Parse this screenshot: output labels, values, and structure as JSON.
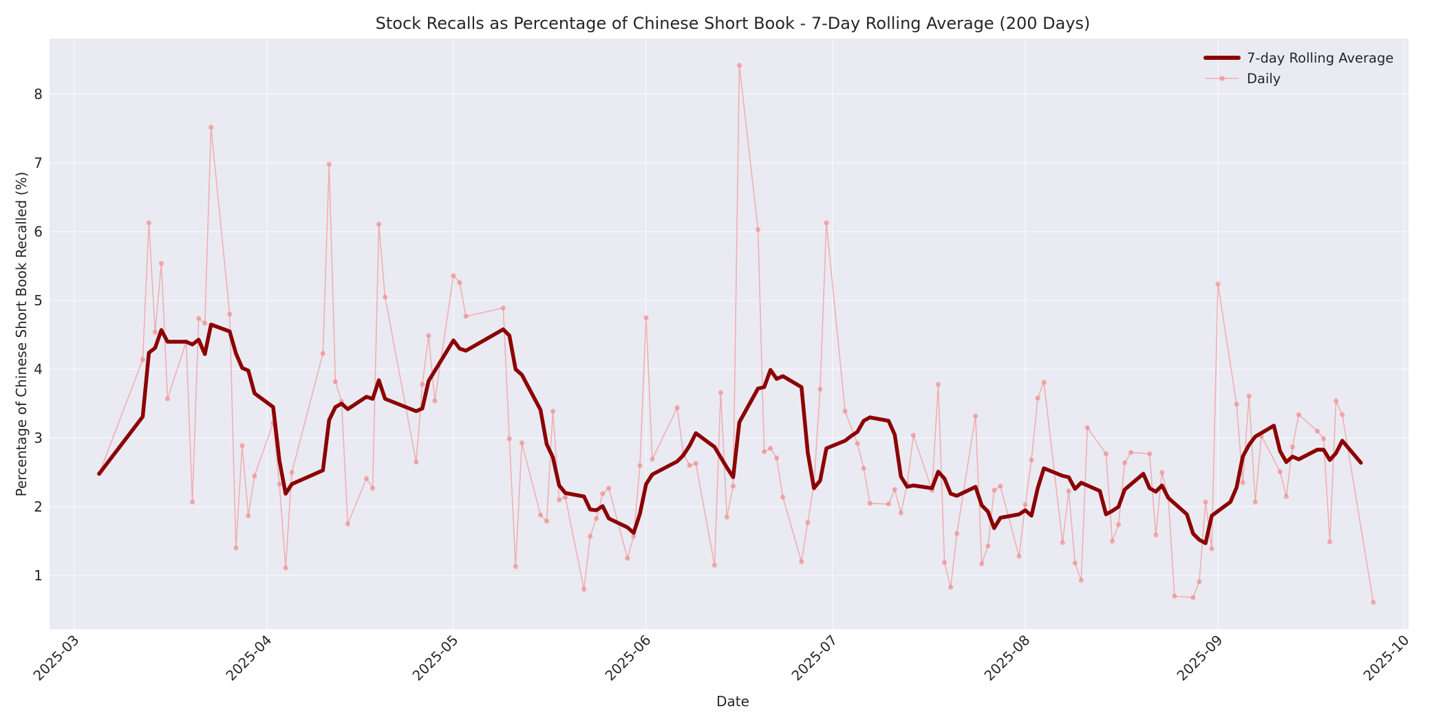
{
  "chart_data": {
    "type": "line",
    "title": "Stock Recalls as Percentage of Chinese Short Book - 7-Day Rolling Average (200 Days)",
    "xlabel": "Date",
    "ylabel": "Percentage of Chinese Short Book Recalled (%)",
    "x_tick_labels": [
      "2025-03",
      "2025-04",
      "2025-05",
      "2025-06",
      "2025-07",
      "2025-08",
      "2025-09",
      "2025-10"
    ],
    "y_tick_labels": [
      "1",
      "2",
      "3",
      "4",
      "5",
      "6",
      "7",
      "8"
    ],
    "xlim": [
      "2025-02-27",
      "2025-10-01"
    ],
    "ylim": [
      0.22,
      8.82
    ],
    "grid": true,
    "legend_position": "upper right",
    "colors": {
      "rolling": "#8b0000",
      "daily": "#f08080",
      "plot_bg": "#eaeaf2",
      "grid": "#ffffff"
    },
    "series": [
      {
        "name": "7-day Rolling Average",
        "style": "thick-line",
        "points": [
          [
            "2025-03-05",
            2.48
          ],
          [
            "2025-03-12",
            3.31
          ],
          [
            "2025-03-13",
            4.24
          ],
          [
            "2025-03-14",
            4.31
          ],
          [
            "2025-03-15",
            4.57
          ],
          [
            "2025-03-16",
            4.4
          ],
          [
            "2025-03-19",
            4.4
          ],
          [
            "2025-03-20",
            4.36
          ],
          [
            "2025-03-21",
            4.43
          ],
          [
            "2025-03-22",
            4.22
          ],
          [
            "2025-03-23",
            4.65
          ],
          [
            "2025-03-26",
            4.55
          ],
          [
            "2025-03-27",
            4.23
          ],
          [
            "2025-03-28",
            4.02
          ],
          [
            "2025-03-29",
            3.98
          ],
          [
            "2025-03-30",
            3.65
          ],
          [
            "2025-04-02",
            3.45
          ],
          [
            "2025-04-03",
            2.67
          ],
          [
            "2025-04-04",
            2.19
          ],
          [
            "2025-04-05",
            2.33
          ],
          [
            "2025-04-10",
            2.53
          ],
          [
            "2025-04-11",
            3.26
          ],
          [
            "2025-04-12",
            3.45
          ],
          [
            "2025-04-13",
            3.5
          ],
          [
            "2025-04-14",
            3.42
          ],
          [
            "2025-04-17",
            3.6
          ],
          [
            "2025-04-18",
            3.57
          ],
          [
            "2025-04-19",
            3.84
          ],
          [
            "2025-04-20",
            3.57
          ],
          [
            "2025-04-25",
            3.39
          ],
          [
            "2025-04-26",
            3.43
          ],
          [
            "2025-04-27",
            3.83
          ],
          [
            "2025-05-01",
            4.42
          ],
          [
            "2025-05-02",
            4.3
          ],
          [
            "2025-05-03",
            4.27
          ],
          [
            "2025-05-09",
            4.58
          ],
          [
            "2025-05-10",
            4.49
          ],
          [
            "2025-05-11",
            4.0
          ],
          [
            "2025-05-12",
            3.92
          ],
          [
            "2025-05-15",
            3.41
          ],
          [
            "2025-05-16",
            2.91
          ],
          [
            "2025-05-17",
            2.72
          ],
          [
            "2025-05-18",
            2.31
          ],
          [
            "2025-05-19",
            2.2
          ],
          [
            "2025-05-22",
            2.15
          ],
          [
            "2025-05-23",
            1.96
          ],
          [
            "2025-05-24",
            1.95
          ],
          [
            "2025-05-25",
            2.01
          ],
          [
            "2025-05-26",
            1.83
          ],
          [
            "2025-05-29",
            1.7
          ],
          [
            "2025-05-30",
            1.62
          ],
          [
            "2025-05-31",
            1.9
          ],
          [
            "2025-06-01",
            2.33
          ],
          [
            "2025-06-02",
            2.47
          ],
          [
            "2025-06-06",
            2.66
          ],
          [
            "2025-06-07",
            2.75
          ],
          [
            "2025-06-08",
            2.89
          ],
          [
            "2025-06-09",
            3.07
          ],
          [
            "2025-06-12",
            2.87
          ],
          [
            "2025-06-13",
            2.72
          ],
          [
            "2025-06-14",
            2.57
          ],
          [
            "2025-06-15",
            2.43
          ],
          [
            "2025-06-16",
            3.23
          ],
          [
            "2025-06-19",
            3.72
          ],
          [
            "2025-06-20",
            3.74
          ],
          [
            "2025-06-21",
            3.99
          ],
          [
            "2025-06-22",
            3.86
          ],
          [
            "2025-06-23",
            3.9
          ],
          [
            "2025-06-26",
            3.74
          ],
          [
            "2025-06-27",
            2.79
          ],
          [
            "2025-06-28",
            2.27
          ],
          [
            "2025-06-29",
            2.38
          ],
          [
            "2025-06-30",
            2.85
          ],
          [
            "2025-07-03",
            2.96
          ],
          [
            "2025-07-04",
            3.03
          ],
          [
            "2025-07-05",
            3.09
          ],
          [
            "2025-07-06",
            3.25
          ],
          [
            "2025-07-07",
            3.3
          ],
          [
            "2025-07-10",
            3.25
          ],
          [
            "2025-07-11",
            3.05
          ],
          [
            "2025-07-12",
            2.44
          ],
          [
            "2025-07-13",
            2.29
          ],
          [
            "2025-07-14",
            2.31
          ],
          [
            "2025-07-17",
            2.27
          ],
          [
            "2025-07-18",
            2.51
          ],
          [
            "2025-07-19",
            2.41
          ],
          [
            "2025-07-20",
            2.19
          ],
          [
            "2025-07-21",
            2.16
          ],
          [
            "2025-07-24",
            2.29
          ],
          [
            "2025-07-25",
            2.02
          ],
          [
            "2025-07-26",
            1.93
          ],
          [
            "2025-07-27",
            1.69
          ],
          [
            "2025-07-28",
            1.84
          ],
          [
            "2025-07-31",
            1.89
          ],
          [
            "2025-08-01",
            1.95
          ],
          [
            "2025-08-02",
            1.87
          ],
          [
            "2025-08-03",
            2.27
          ],
          [
            "2025-08-04",
            2.56
          ],
          [
            "2025-08-07",
            2.45
          ],
          [
            "2025-08-08",
            2.43
          ],
          [
            "2025-08-09",
            2.26
          ],
          [
            "2025-08-10",
            2.35
          ],
          [
            "2025-08-13",
            2.23
          ],
          [
            "2025-08-14",
            1.89
          ],
          [
            "2025-08-15",
            1.94
          ],
          [
            "2025-08-16",
            2.0
          ],
          [
            "2025-08-17",
            2.25
          ],
          [
            "2025-08-20",
            2.48
          ],
          [
            "2025-08-21",
            2.27
          ],
          [
            "2025-08-22",
            2.22
          ],
          [
            "2025-08-23",
            2.31
          ],
          [
            "2025-08-24",
            2.13
          ],
          [
            "2025-08-27",
            1.89
          ],
          [
            "2025-08-28",
            1.61
          ],
          [
            "2025-08-29",
            1.52
          ],
          [
            "2025-08-30",
            1.47
          ],
          [
            "2025-08-31",
            1.87
          ],
          [
            "2025-09-03",
            2.07
          ],
          [
            "2025-09-04",
            2.28
          ],
          [
            "2025-09-05",
            2.73
          ],
          [
            "2025-09-06",
            2.9
          ],
          [
            "2025-09-07",
            3.02
          ],
          [
            "2025-09-10",
            3.18
          ],
          [
            "2025-09-11",
            2.81
          ],
          [
            "2025-09-12",
            2.65
          ],
          [
            "2025-09-13",
            2.73
          ],
          [
            "2025-09-14",
            2.69
          ],
          [
            "2025-09-17",
            2.83
          ],
          [
            "2025-09-18",
            2.83
          ],
          [
            "2025-09-19",
            2.68
          ],
          [
            "2025-09-20",
            2.78
          ],
          [
            "2025-09-21",
            2.96
          ],
          [
            "2025-09-24",
            2.64
          ]
        ]
      },
      {
        "name": "Daily",
        "style": "thin-line-with-markers",
        "points": [
          [
            "2025-03-05",
            2.48
          ],
          [
            "2025-03-12",
            4.14
          ],
          [
            "2025-03-13",
            6.13
          ],
          [
            "2025-03-14",
            4.54
          ],
          [
            "2025-03-15",
            5.54
          ],
          [
            "2025-03-16",
            3.57
          ],
          [
            "2025-03-19",
            4.4
          ],
          [
            "2025-03-20",
            2.07
          ],
          [
            "2025-03-21",
            4.74
          ],
          [
            "2025-03-22",
            4.67
          ],
          [
            "2025-03-23",
            7.52
          ],
          [
            "2025-03-26",
            4.8
          ],
          [
            "2025-03-27",
            1.4
          ],
          [
            "2025-03-28",
            2.89
          ],
          [
            "2025-03-29",
            1.87
          ],
          [
            "2025-03-30",
            2.45
          ],
          [
            "2025-04-02",
            3.22
          ],
          [
            "2025-04-03",
            2.33
          ],
          [
            "2025-04-04",
            1.11
          ],
          [
            "2025-04-05",
            2.5
          ],
          [
            "2025-04-10",
            4.23
          ],
          [
            "2025-04-11",
            6.98
          ],
          [
            "2025-04-12",
            3.82
          ],
          [
            "2025-04-13",
            3.53
          ],
          [
            "2025-04-14",
            1.75
          ],
          [
            "2025-04-17",
            2.41
          ],
          [
            "2025-04-18",
            2.27
          ],
          [
            "2025-04-19",
            6.11
          ],
          [
            "2025-04-20",
            5.05
          ],
          [
            "2025-04-25",
            2.65
          ],
          [
            "2025-04-26",
            3.78
          ],
          [
            "2025-04-27",
            4.49
          ],
          [
            "2025-04-28",
            3.54
          ],
          [
            "2025-05-01",
            5.36
          ],
          [
            "2025-05-02",
            5.26
          ],
          [
            "2025-05-03",
            4.77
          ],
          [
            "2025-05-09",
            4.89
          ],
          [
            "2025-05-10",
            2.99
          ],
          [
            "2025-05-11",
            1.13
          ],
          [
            "2025-05-12",
            2.93
          ],
          [
            "2025-05-15",
            1.88
          ],
          [
            "2025-05-16",
            1.79
          ],
          [
            "2025-05-17",
            3.39
          ],
          [
            "2025-05-18",
            2.1
          ],
          [
            "2025-05-19",
            2.14
          ],
          [
            "2025-05-22",
            0.8
          ],
          [
            "2025-05-23",
            1.57
          ],
          [
            "2025-05-24",
            1.83
          ],
          [
            "2025-05-25",
            2.19
          ],
          [
            "2025-05-26",
            2.27
          ],
          [
            "2025-05-29",
            1.25
          ],
          [
            "2025-05-30",
            1.57
          ],
          [
            "2025-05-31",
            2.6
          ],
          [
            "2025-06-01",
            4.75
          ],
          [
            "2025-06-02",
            2.69
          ],
          [
            "2025-06-06",
            3.44
          ],
          [
            "2025-06-07",
            2.77
          ],
          [
            "2025-06-08",
            2.6
          ],
          [
            "2025-06-09",
            2.63
          ],
          [
            "2025-06-12",
            1.15
          ],
          [
            "2025-06-13",
            3.66
          ],
          [
            "2025-06-14",
            1.85
          ],
          [
            "2025-06-15",
            2.3
          ],
          [
            "2025-06-16",
            8.42
          ],
          [
            "2025-06-19",
            6.03
          ],
          [
            "2025-06-20",
            2.8
          ],
          [
            "2025-06-21",
            2.85
          ],
          [
            "2025-06-22",
            2.71
          ],
          [
            "2025-06-23",
            2.14
          ],
          [
            "2025-06-26",
            1.2
          ],
          [
            "2025-06-27",
            1.77
          ],
          [
            "2025-06-28",
            2.33
          ],
          [
            "2025-06-29",
            3.71
          ],
          [
            "2025-06-30",
            6.13
          ],
          [
            "2025-07-03",
            3.39
          ],
          [
            "2025-07-05",
            2.92
          ],
          [
            "2025-07-06",
            2.56
          ],
          [
            "2025-07-07",
            2.05
          ],
          [
            "2025-07-10",
            2.04
          ],
          [
            "2025-07-11",
            2.25
          ],
          [
            "2025-07-12",
            1.91
          ],
          [
            "2025-07-13",
            2.33
          ],
          [
            "2025-07-14",
            3.04
          ],
          [
            "2025-07-17",
            2.24
          ],
          [
            "2025-07-18",
            3.78
          ],
          [
            "2025-07-19",
            1.19
          ],
          [
            "2025-07-20",
            0.83
          ],
          [
            "2025-07-21",
            1.61
          ],
          [
            "2025-07-24",
            3.32
          ],
          [
            "2025-07-25",
            1.17
          ],
          [
            "2025-07-26",
            1.43
          ],
          [
            "2025-07-27",
            2.24
          ],
          [
            "2025-07-28",
            2.3
          ],
          [
            "2025-07-31",
            1.28
          ],
          [
            "2025-08-01",
            2.03
          ],
          [
            "2025-08-02",
            2.68
          ],
          [
            "2025-08-03",
            3.58
          ],
          [
            "2025-08-04",
            3.81
          ],
          [
            "2025-08-07",
            1.48
          ],
          [
            "2025-08-08",
            2.23
          ],
          [
            "2025-08-09",
            1.18
          ],
          [
            "2025-08-10",
            0.93
          ],
          [
            "2025-08-11",
            3.15
          ],
          [
            "2025-08-14",
            2.77
          ],
          [
            "2025-08-15",
            1.5
          ],
          [
            "2025-08-16",
            1.74
          ],
          [
            "2025-08-17",
            2.64
          ],
          [
            "2025-08-18",
            2.79
          ],
          [
            "2025-08-21",
            2.77
          ],
          [
            "2025-08-22",
            1.59
          ],
          [
            "2025-08-23",
            2.5
          ],
          [
            "2025-08-24",
            2.14
          ],
          [
            "2025-08-25",
            0.7
          ],
          [
            "2025-08-28",
            0.68
          ],
          [
            "2025-08-29",
            0.91
          ],
          [
            "2025-08-30",
            2.07
          ],
          [
            "2025-08-31",
            1.39
          ],
          [
            "2025-09-01",
            5.24
          ],
          [
            "2025-09-04",
            3.49
          ],
          [
            "2025-09-05",
            2.35
          ],
          [
            "2025-09-06",
            3.61
          ],
          [
            "2025-09-07",
            2.07
          ],
          [
            "2025-09-08",
            3.03
          ],
          [
            "2025-09-11",
            2.51
          ],
          [
            "2025-09-12",
            2.15
          ],
          [
            "2025-09-13",
            2.87
          ],
          [
            "2025-09-14",
            3.34
          ],
          [
            "2025-09-17",
            3.1
          ],
          [
            "2025-09-18",
            2.99
          ],
          [
            "2025-09-19",
            1.49
          ],
          [
            "2025-09-20",
            3.54
          ],
          [
            "2025-09-21",
            3.34
          ],
          [
            "2025-09-26",
            0.61
          ]
        ]
      }
    ]
  },
  "legend": {
    "rolling_label": "7-day Rolling Average",
    "daily_label": "Daily"
  }
}
